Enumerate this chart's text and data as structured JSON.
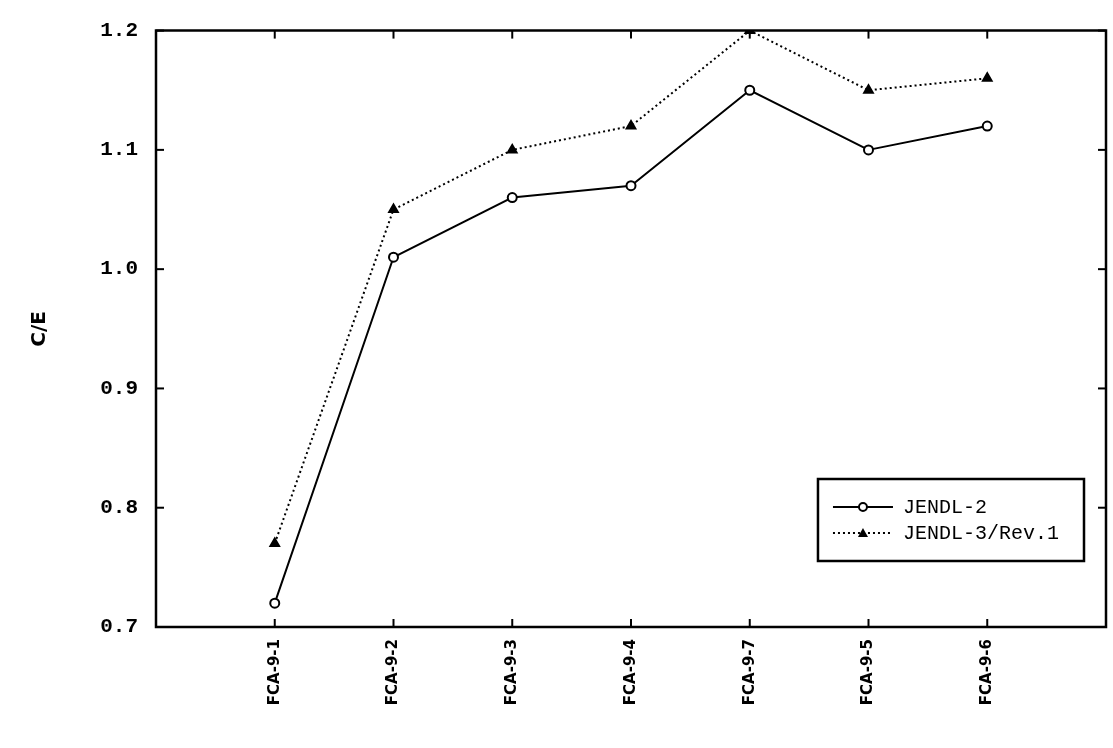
{
  "chart_data": {
    "type": "line",
    "ylabel": "C/E",
    "categories": [
      "FCA-9-1",
      "FCA-9-2",
      "FCA-9-3",
      "FCA-9-4",
      "FCA-9-7",
      "FCA-9-5",
      "FCA-9-6"
    ],
    "ylim": [
      0.7,
      1.2
    ],
    "yticks": [
      {
        "value": 0.7,
        "label": "0.7"
      },
      {
        "value": 0.8,
        "label": "0.8"
      },
      {
        "value": 0.9,
        "label": "0.9"
      },
      {
        "value": 1.0,
        "label": "1.0"
      },
      {
        "value": 1.1,
        "label": "1.1"
      },
      {
        "value": 1.2,
        "label": "1.2"
      }
    ],
    "grid": false,
    "legend": "bottom right",
    "series": [
      {
        "name": "JENDL-2",
        "color": "#000000",
        "marker": "circle",
        "line_style": "solid",
        "values": [
          0.72,
          1.01,
          1.06,
          1.07,
          1.15,
          1.1,
          1.12
        ]
      },
      {
        "name": "JENDL-3/Rev.1",
        "color": "#000000",
        "marker": "triangle",
        "line_style": "dotted",
        "values": [
          0.77,
          1.05,
          1.1,
          1.12,
          1.2,
          1.15,
          1.16
        ]
      }
    ]
  }
}
